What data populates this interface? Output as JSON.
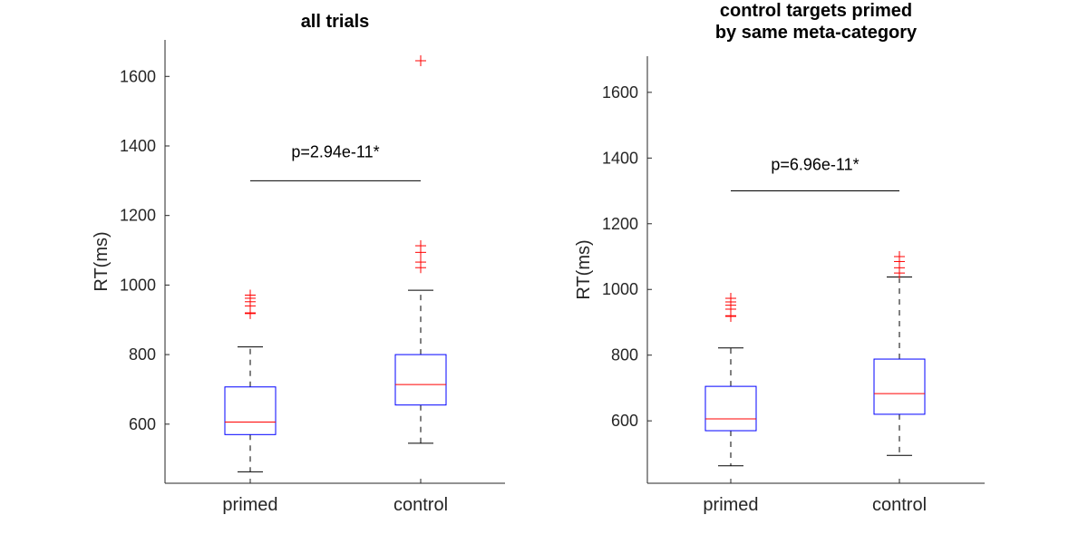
{
  "chart_data": [
    {
      "type": "box",
      "title": [
        "all trials"
      ],
      "ylabel": "RT(ms)",
      "ylim": [
        430,
        1705
      ],
      "yticks": [
        600,
        800,
        1000,
        1200,
        1400,
        1600
      ],
      "categories": [
        "primed",
        "control"
      ],
      "boxes": [
        {
          "name": "primed",
          "whisker_low": 463,
          "q1": 570,
          "median": 606,
          "q3": 707,
          "whisker_high": 822,
          "outliers": [
            918,
            920,
            940,
            952,
            962,
            971
          ]
        },
        {
          "name": "control",
          "whisker_low": 545,
          "q1": 655,
          "median": 714,
          "q3": 800,
          "whisker_high": 985,
          "outliers": [
            1050,
            1066,
            1094,
            1113,
            1645
          ]
        }
      ],
      "annotation": {
        "text": "p=2.94e-11*",
        "bar_y": 1300,
        "text_y": 1383
      }
    },
    {
      "type": "box",
      "title": [
        "control targets primed",
        "by same meta-category"
      ],
      "ylabel": "RT(ms)",
      "ylim": [
        410,
        1710
      ],
      "yticks": [
        600,
        800,
        1000,
        1200,
        1400,
        1600
      ],
      "categories": [
        "primed",
        "control"
      ],
      "boxes": [
        {
          "name": "primed",
          "whisker_low": 463,
          "q1": 570,
          "median": 606,
          "q3": 705,
          "whisker_high": 822,
          "outliers": [
            918,
            920,
            940,
            952,
            962,
            973
          ]
        },
        {
          "name": "control",
          "whisker_low": 495,
          "q1": 620,
          "median": 683,
          "q3": 788,
          "whisker_high": 1038,
          "outliers": [
            1050,
            1066,
            1085,
            1100
          ]
        }
      ],
      "annotation": {
        "text": "p=6.96e-11*",
        "bar_y": 1300,
        "text_y": 1380
      }
    }
  ],
  "colors": {
    "box": "#0000ff",
    "median": "#ff0000",
    "outlier": "#ff0000",
    "whisker": "#000000",
    "axis": "#262626"
  }
}
